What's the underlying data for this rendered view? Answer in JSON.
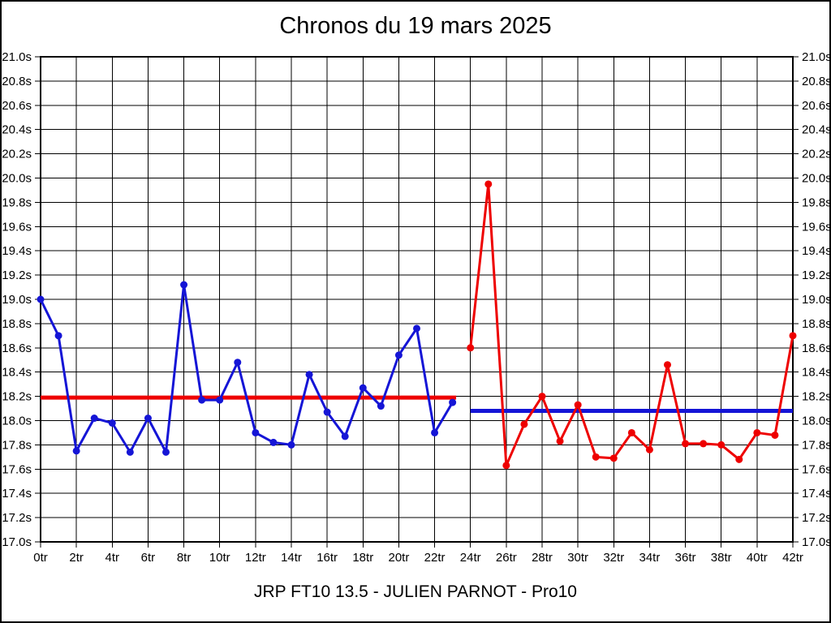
{
  "chart_data": {
    "type": "line",
    "title": "Chronos du 19 mars 2025",
    "annotation": "JRP FT10 13.5 - JULIEN PARNOT - Pro10",
    "x_unit": "tr",
    "y_unit": "s",
    "xlim": [
      0,
      42
    ],
    "ylim": [
      17.0,
      21.0
    ],
    "grid": true,
    "y_axis_labels": "both-sides",
    "x_tick_values": [
      0,
      2,
      4,
      6,
      8,
      10,
      12,
      14,
      16,
      18,
      20,
      22,
      24,
      26,
      28,
      30,
      32,
      34,
      36,
      38,
      40,
      42
    ],
    "x_tick_labels": [
      "0tr",
      "2tr",
      "4tr",
      "6tr",
      "8tr",
      "10tr",
      "12tr",
      "14tr",
      "16tr",
      "18tr",
      "20tr",
      "22tr",
      "24tr",
      "26tr",
      "28tr",
      "30tr",
      "32tr",
      "34tr",
      "36tr",
      "38tr",
      "40tr",
      "42tr"
    ],
    "y_tick_values": [
      21.0,
      20.8,
      20.6,
      20.4,
      20.2,
      20.0,
      19.8,
      19.6,
      19.4,
      19.2,
      19.0,
      18.8,
      18.6,
      18.4,
      18.2,
      18.0,
      17.8,
      17.6,
      17.4,
      17.2,
      17.0
    ],
    "y_tick_labels": [
      "21.0s",
      "20.8s",
      "20.6s",
      "20.4s",
      "20.2s",
      "20.0s",
      "19.8s",
      "19.6s",
      "19.4s",
      "19.2s",
      "19.0s",
      "18.8s",
      "18.6s",
      "18.4s",
      "18.2s",
      "18.0s",
      "17.8s",
      "17.6s",
      "17.4s",
      "17.2s",
      "17.0s"
    ],
    "series": [
      {
        "name": "session-1-blue",
        "color": "#1515d6",
        "x": [
          0,
          1,
          2,
          3,
          4,
          5,
          6,
          7,
          8,
          9,
          10,
          11,
          12,
          13,
          14,
          15,
          16,
          17,
          18,
          19,
          20,
          21,
          22,
          23
        ],
        "values": [
          19.0,
          18.7,
          17.75,
          18.02,
          17.98,
          17.74,
          18.02,
          17.74,
          19.12,
          18.17,
          18.17,
          18.48,
          17.9,
          17.82,
          17.8,
          18.38,
          18.07,
          17.87,
          18.27,
          18.12,
          18.54,
          18.76,
          17.9,
          18.15
        ]
      },
      {
        "name": "session-2-red",
        "color": "#ee0000",
        "x": [
          24,
          25,
          26,
          27,
          28,
          29,
          30,
          31,
          32,
          33,
          34,
          35,
          36,
          37,
          38,
          39,
          40,
          41,
          42
        ],
        "values": [
          18.6,
          19.95,
          17.63,
          17.97,
          18.2,
          17.83,
          18.13,
          17.7,
          17.69,
          17.9,
          17.76,
          18.46,
          17.81,
          17.81,
          17.8,
          17.68,
          17.9,
          17.88,
          18.7
        ]
      }
    ],
    "mean_lines": [
      {
        "name": "mean-session-1",
        "color": "#ee0000",
        "value": 18.19,
        "x_start": 0,
        "x_end": 23.2
      },
      {
        "name": "mean-session-2",
        "color": "#1515d6",
        "value": 18.08,
        "x_start": 24,
        "x_end": 42
      }
    ]
  }
}
